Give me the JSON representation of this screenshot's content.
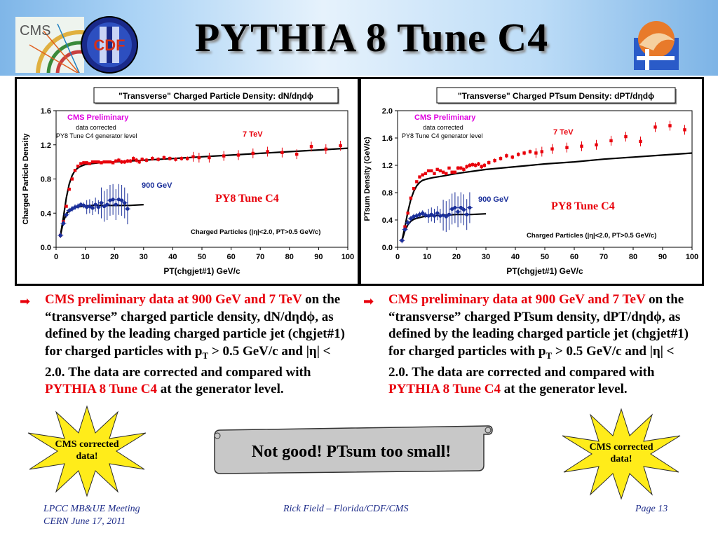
{
  "slide": {
    "title": "PYTHIA 8 Tune C4",
    "logos": {
      "cms_text": "CMS",
      "cdf_text": "CDF"
    },
    "footer": {
      "left_line1": "LPCC MB&UE Meeting",
      "left_line2": "CERN June 17, 2011",
      "center": "Rick Field – Florida/CDF/CMS",
      "right": "Page 13"
    },
    "bullets": [
      {
        "red": "CMS preliminary data at  900 GeV and 7 TeV",
        "rest1": " on the “transverse” charged particle density, dN/dηdϕ, as defined by the leading charged particle jet (chgjet#1) for charged particles with p",
        "sub": "T",
        "rest2": " > 0.5 GeV/c and |η| < 2.0. The data are corrected and compared with ",
        "red2": "PYTHIA 8 Tune C4",
        "rest3": " at the generator level."
      },
      {
        "red": "CMS preliminary data at  900 GeV and 7 TeV",
        "rest1": " on the “transverse” charged PTsum density, dPT/dηdϕ, as defined by the leading charged particle jet (chgjet#1) for charged particles with p",
        "sub": "T",
        "rest2": " > 0.5 GeV/c and |η| < 2.0. The data are corrected and compared with ",
        "red2": "PYTHIA 8 Tune C4",
        "rest3": " at the generator level."
      }
    ],
    "stars": [
      "CMS corrected data!",
      "CMS corrected data!"
    ],
    "scroll_text": "Not good!  PTsum too small!",
    "colors": {
      "data_7tev": "#e8000b",
      "data_900": "#1a2f9a",
      "cms_label": "#e000e0",
      "tune_label": "#e8000b",
      "star_fill": "#ffec1a",
      "scroll_fill": "#c8c8c8"
    }
  },
  "chart_data": [
    {
      "type": "scatter",
      "title": "\"Transverse\" Charged Particle Density: dN/dηdϕ",
      "xlabel": "PT(chgjet#1) GeV/c",
      "ylabel": "Charged Particle Density",
      "xlim": [
        0,
        100
      ],
      "ylim": [
        0,
        1.6
      ],
      "xticks": [
        "0",
        "10",
        "20",
        "30",
        "40",
        "50",
        "60",
        "70",
        "80",
        "90",
        "100"
      ],
      "yticks": [
        "0.0",
        "0.4",
        "0.8",
        "1.2",
        "1.6"
      ],
      "cms_label": "CMS Preliminary",
      "note1": "data corrected",
      "note2": "PY8 Tune C4 generator level",
      "label_7tev": "7 TeV",
      "label_900": "900 GeV",
      "tune_label": "PY8 Tune C4",
      "cuts": "Charged Particles (|η|<2.0, PT>0.5 GeV/c)",
      "series": [
        {
          "name": "7 TeV",
          "x": [
            1.5,
            2.5,
            3.5,
            4.5,
            5.5,
            6.5,
            7.5,
            8.5,
            9.5,
            10.5,
            11.5,
            12.5,
            13.5,
            14.5,
            15.5,
            16.5,
            17.5,
            18.5,
            19.5,
            20.5,
            21.5,
            22.5,
            23.5,
            24.5,
            25.5,
            26.5,
            27.5,
            28.5,
            29.5,
            31,
            33,
            35,
            37,
            39,
            41,
            43,
            45,
            47,
            49,
            52.5,
            57.5,
            62.5,
            67.5,
            72.5,
            77.5,
            82.5,
            87.5,
            92.5,
            97.5
          ],
          "y": [
            0.14,
            0.3,
            0.48,
            0.68,
            0.8,
            0.9,
            0.95,
            0.98,
            0.99,
            0.99,
            0.98,
            1.0,
            1.0,
            1.0,
            0.99,
            1.0,
            1.0,
            1.0,
            0.99,
            1.01,
            1.02,
            1.0,
            1.0,
            1.01,
            1.01,
            1.04,
            1.02,
            1.0,
            1.03,
            1.02,
            1.04,
            1.03,
            1.05,
            1.04,
            1.03,
            1.04,
            1.04,
            1.06,
            1.05,
            1.05,
            1.07,
            1.08,
            1.1,
            1.12,
            1.11,
            1.09,
            1.18,
            1.15,
            1.19
          ]
        },
        {
          "name": "900 GeV",
          "x": [
            1.5,
            2.5,
            3.5,
            4.5,
            5.5,
            6.5,
            7.5,
            8.5,
            9.5,
            10.5,
            11.5,
            12.5,
            13.5,
            14.5,
            15.5,
            16.5,
            17.5,
            18.5,
            19.5,
            20.5,
            21.5,
            22.5,
            23.5,
            24.5
          ],
          "y": [
            0.14,
            0.28,
            0.38,
            0.43,
            0.45,
            0.47,
            0.48,
            0.5,
            0.49,
            0.47,
            0.48,
            0.46,
            0.5,
            0.47,
            0.52,
            0.48,
            0.5,
            0.55,
            0.56,
            0.5,
            0.56,
            0.55,
            0.52,
            0.45
          ]
        },
        {
          "name": "PY8 Tune C4 7 TeV",
          "x": [
            1.5,
            2.5,
            3.5,
            4.5,
            5.5,
            6.5,
            7.5,
            8.5,
            10,
            12,
            15,
            20,
            30,
            40,
            50,
            60,
            70,
            80,
            90,
            100
          ],
          "y": [
            0.14,
            0.35,
            0.58,
            0.74,
            0.84,
            0.9,
            0.93,
            0.95,
            0.97,
            0.98,
            0.99,
            1.0,
            1.02,
            1.04,
            1.06,
            1.08,
            1.1,
            1.12,
            1.14,
            1.16
          ]
        },
        {
          "name": "PY8 Tune C4 900 GeV",
          "x": [
            1.5,
            2.5,
            3.5,
            4.5,
            5.5,
            7,
            9,
            12,
            16,
            20,
            25,
            30
          ],
          "y": [
            0.14,
            0.3,
            0.39,
            0.43,
            0.45,
            0.47,
            0.48,
            0.49,
            0.49,
            0.49,
            0.49,
            0.5
          ]
        }
      ]
    },
    {
      "type": "scatter",
      "title": "\"Transverse\" Charged PTsum Density: dPT/dηdϕ",
      "xlabel": "PT(chgjet#1) GeV/c",
      "ylabel": "PTsum Density  (GeV/c)",
      "xlim": [
        0,
        100
      ],
      "ylim": [
        0,
        2.0
      ],
      "xticks": [
        "0",
        "10",
        "20",
        "30",
        "40",
        "50",
        "60",
        "70",
        "80",
        "90",
        "100"
      ],
      "yticks": [
        "0.0",
        "0.4",
        "0.8",
        "1.2",
        "1.6",
        "2.0"
      ],
      "cms_label": "CMS Preliminary",
      "note1": "data corrected",
      "note2": "PY8 Tune C4 generator level",
      "label_7tev": "7 TeV",
      "label_900": "900 GeV",
      "tune_label": "PY8 Tune C4",
      "cuts": "Charged Particles (|η|<2.0, PT>0.5 GeV/c)",
      "series": [
        {
          "name": "7 TeV",
          "x": [
            1.5,
            2.5,
            3.5,
            4.5,
            5.5,
            6.5,
            7.5,
            8.5,
            9.5,
            10.5,
            11.5,
            12.5,
            13.5,
            14.5,
            15.5,
            16.5,
            17.5,
            18.5,
            19.5,
            20.5,
            21.5,
            22.5,
            23.5,
            24.5,
            25.5,
            26.5,
            27.5,
            28.5,
            29.5,
            31,
            33,
            35,
            37,
            39,
            41,
            43,
            45,
            47,
            49,
            52.5,
            57.5,
            62.5,
            67.5,
            72.5,
            77.5,
            82.5,
            87.5,
            92.5,
            97.5
          ],
          "y": [
            0.1,
            0.3,
            0.5,
            0.72,
            0.86,
            0.96,
            1.03,
            1.06,
            1.08,
            1.12,
            1.12,
            1.08,
            1.14,
            1.12,
            1.1,
            1.08,
            1.16,
            1.1,
            1.1,
            1.16,
            1.16,
            1.14,
            1.18,
            1.2,
            1.21,
            1.2,
            1.22,
            1.18,
            1.2,
            1.24,
            1.27,
            1.3,
            1.34,
            1.32,
            1.36,
            1.38,
            1.4,
            1.38,
            1.4,
            1.44,
            1.46,
            1.48,
            1.5,
            1.56,
            1.62,
            1.55,
            1.76,
            1.78,
            1.72
          ]
        },
        {
          "name": "900 GeV",
          "x": [
            1.5,
            2.5,
            3.5,
            4.5,
            5.5,
            6.5,
            7.5,
            8.5,
            9.5,
            10.5,
            11.5,
            12.5,
            13.5,
            14.5,
            15.5,
            16.5,
            17.5,
            18.5,
            19.5,
            20.5,
            21.5,
            22.5,
            23.5,
            24.5
          ],
          "y": [
            0.1,
            0.26,
            0.36,
            0.42,
            0.45,
            0.46,
            0.48,
            0.5,
            0.47,
            0.46,
            0.48,
            0.46,
            0.5,
            0.46,
            0.47,
            0.45,
            0.48,
            0.56,
            0.58,
            0.52,
            0.58,
            0.55,
            0.48,
            0.58
          ]
        },
        {
          "name": "PY8 Tune C4 7 TeV",
          "x": [
            1.5,
            2.5,
            3.5,
            4.5,
            5.5,
            6.5,
            7.5,
            8.5,
            10,
            12,
            15,
            20,
            30,
            40,
            50,
            60,
            70,
            80,
            90,
            100
          ],
          "y": [
            0.1,
            0.3,
            0.52,
            0.7,
            0.82,
            0.9,
            0.95,
            0.98,
            1.0,
            1.02,
            1.04,
            1.08,
            1.14,
            1.18,
            1.22,
            1.25,
            1.29,
            1.32,
            1.35,
            1.38
          ]
        },
        {
          "name": "PY8 Tune C4 900 GeV",
          "x": [
            1.5,
            2.5,
            3.5,
            4.5,
            5.5,
            7,
            9,
            12,
            16,
            20,
            25,
            30
          ],
          "y": [
            0.1,
            0.24,
            0.33,
            0.38,
            0.41,
            0.43,
            0.45,
            0.46,
            0.47,
            0.48,
            0.48,
            0.49
          ]
        }
      ]
    }
  ]
}
